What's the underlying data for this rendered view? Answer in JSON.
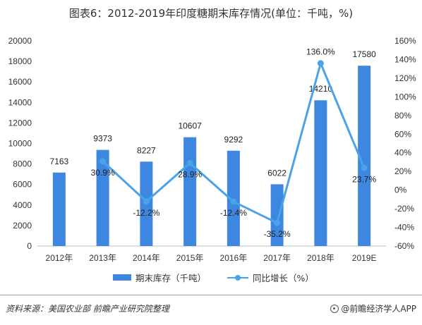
{
  "title": "图表6：2012-2019年印度糖期末库存情况(单位：千吨，%)",
  "chart_data": {
    "type": "bar",
    "categories": [
      "2012年",
      "2013年",
      "2014年",
      "2015年",
      "2016年",
      "2017年",
      "2018年",
      "2019E"
    ],
    "series": [
      {
        "name": "期末库存（千吨）",
        "type": "bar",
        "axis": "left",
        "color": "#3e87e0",
        "values": [
          7163,
          9373,
          8227,
          10607,
          9292,
          6022,
          14210,
          17580
        ],
        "labels": [
          "7163",
          "9373",
          "8227",
          "10607",
          "9292",
          "6022",
          "14210",
          "17580"
        ]
      },
      {
        "name": "同比增长（%）",
        "type": "line",
        "axis": "right",
        "color": "#4aa3e8",
        "values": [
          null,
          30.9,
          -12.2,
          28.9,
          -12.4,
          -35.2,
          136.0,
          23.7
        ],
        "labels": [
          "",
          "30.9%",
          "-12.2%",
          "28.9%",
          "-12.4%",
          "-35.2%",
          "136.0%",
          "23.7%"
        ]
      }
    ],
    "ylim_left": [
      0,
      20000
    ],
    "yticks_left": [
      "0",
      "2000",
      "4000",
      "6000",
      "8000",
      "10000",
      "12000",
      "14000",
      "16000",
      "18000",
      "20000"
    ],
    "ylim_right": [
      -60,
      160
    ],
    "yticks_right": [
      "-60%",
      "-40%",
      "-20%",
      "0%",
      "20%",
      "40%",
      "60%",
      "80%",
      "100%",
      "120%",
      "140%",
      "160%"
    ],
    "grid": false,
    "legend_position": "bottom"
  },
  "legend": {
    "bar_label": "期末库存（千吨）",
    "line_label": "同比增长（%）"
  },
  "footer": {
    "source": "资料来源：美国农业部 前瞻产业研究院整理",
    "brand": "@前瞻经济学人APP"
  }
}
